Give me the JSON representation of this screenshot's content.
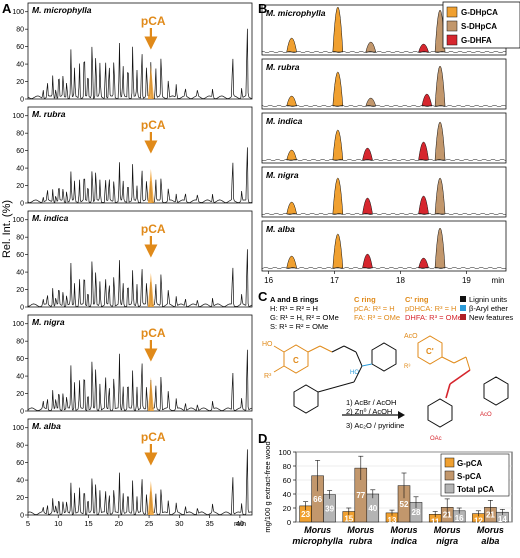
{
  "panel_letters": {
    "a": "A",
    "b": "B",
    "c": "C",
    "d": "D"
  },
  "colors": {
    "orange": "#F0A030",
    "orange_dark": "#E08A1A",
    "tan": "#C2976C",
    "tan_dark": "#A47B52",
    "red": "#D6262E",
    "grey": "#B4B4B4",
    "blue": "#2A9AD8",
    "darkred": "#B01E23",
    "black": "#111111"
  },
  "panelA": {
    "ylabel": "Rel. Int. (%)",
    "xlabel": "min",
    "yticks": [
      "0",
      "20",
      "40",
      "60",
      "80",
      "100"
    ],
    "xticks": [
      "5",
      "10",
      "15",
      "20",
      "25",
      "30",
      "35",
      "40"
    ],
    "pca_label": "pCA",
    "species": [
      "M. microphylla",
      "M. rubra",
      "M. indica",
      "M. nigra",
      "M. alba"
    ]
  },
  "panelB": {
    "xticks": [
      "16",
      "17",
      "18",
      "19"
    ],
    "xlabel": "min",
    "legend": [
      "G-DHpCA",
      "S-DHpCA",
      "G-DHFA"
    ],
    "species": [
      "M. microphylla",
      "M. rubra",
      "M. indica",
      "M. nigra",
      "M. alba"
    ]
  },
  "panelC": {
    "key_ab_title": "A and B rings",
    "key_ab_h": "H: R¹ = R² = H",
    "key_ab_g": "G: R¹ = H, R² = OMe",
    "key_ab_s": "S: R¹ = R² = OMe",
    "key_c_title": "C ring",
    "key_c_pca": "pCA: R³ = H",
    "key_c_fa": "FA: R³ = OMe",
    "key_cp_title": "C' ring",
    "key_cp_pdhca": "pDHCA: R³ = H",
    "key_cp_dhfa": "DHFA: R³ = OMe",
    "legend_lignin": "Lignin units",
    "legend_aryl": "β-Aryl ether",
    "legend_new": "New features",
    "step1": "1) AcBr / AcOH",
    "step2": "2) Zn⁰ / AcOH",
    "step3": "3) Ac₂O / pyridine",
    "plus": "+"
  },
  "panelD": {
    "ylabel": "mg/100 g extract-free wood",
    "yticks": [
      "0",
      "20",
      "40",
      "60",
      "80",
      "100"
    ],
    "legend": [
      "G-pCA",
      "S-pCA",
      "Total pCA"
    ],
    "categories": [
      [
        "Morus",
        "microphylla"
      ],
      [
        "Morus",
        "rubra"
      ],
      [
        "Morus",
        "indica"
      ],
      [
        "Morus",
        "nigra"
      ],
      [
        "Morus",
        "alba"
      ]
    ],
    "bar_labels": [
      [
        "23",
        "66",
        "39"
      ],
      [
        "15",
        "77",
        "40"
      ],
      [
        "13",
        "52",
        "28"
      ],
      [
        "11",
        "21",
        "16"
      ],
      [
        "12",
        "21",
        "14"
      ]
    ]
  },
  "chart_data": [
    {
      "type": "bar",
      "title": "",
      "ylabel": "mg/100 g extract-free wood",
      "ylim": [
        0,
        100
      ],
      "categories": [
        "Morus microphylla",
        "Morus rubra",
        "Morus indica",
        "Morus nigra",
        "Morus alba"
      ],
      "series": [
        {
          "name": "G-pCA",
          "values": [
            23,
            15,
            13,
            11,
            12
          ],
          "err": [
            6,
            5,
            4,
            4,
            4
          ]
        },
        {
          "name": "S-pCA",
          "values": [
            66,
            77,
            52,
            21,
            21
          ],
          "err": [
            22,
            17,
            18,
            12,
            10
          ]
        },
        {
          "name": "Total pCA",
          "values": [
            39,
            40,
            28,
            16,
            14
          ],
          "err": [
            6,
            6,
            8,
            4,
            4
          ]
        }
      ]
    }
  ]
}
